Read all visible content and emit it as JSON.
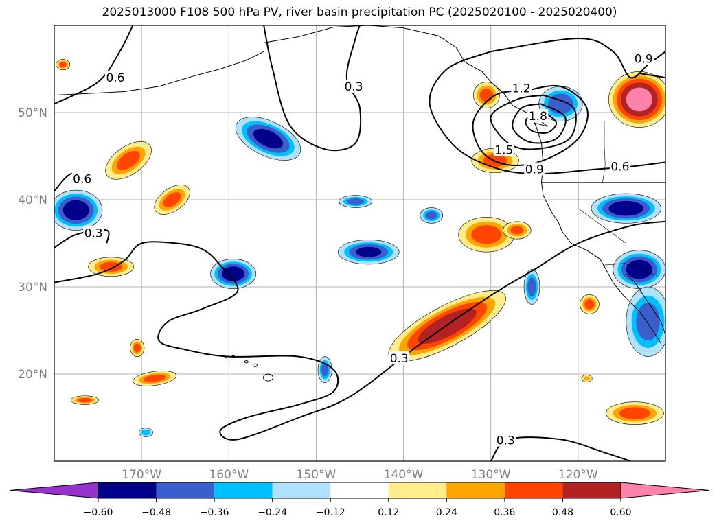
{
  "title": "2025013000 F108 500 hPa PV, river basin precipitation PC (2025020100 - 2025020400)",
  "map": {
    "projection": "equirectangular",
    "lon_range": [
      -180,
      -110
    ],
    "lat_range": [
      10,
      60
    ],
    "gridlines": true,
    "lat_ticks": [
      {
        "value": 50,
        "label": "50°N"
      },
      {
        "value": 40,
        "label": "40°N"
      },
      {
        "value": 30,
        "label": "30°N"
      },
      {
        "value": 20,
        "label": "20°N"
      }
    ],
    "lon_ticks": [
      {
        "value": -170,
        "label": "170°W"
      },
      {
        "value": -160,
        "label": "160°W"
      },
      {
        "value": -150,
        "label": "150°W"
      },
      {
        "value": -140,
        "label": "140°W"
      },
      {
        "value": -130,
        "label": "130°W"
      },
      {
        "value": -120,
        "label": "120°W"
      }
    ],
    "pv_contour_labels": [
      {
        "text": "0.6",
        "lon": -173,
        "lat": 54.0
      },
      {
        "text": "0.6",
        "lon": -176.8,
        "lat": 42.4
      },
      {
        "text": "0.3",
        "lon": -175.5,
        "lat": 36.2
      },
      {
        "text": "0.3",
        "lon": -145.7,
        "lat": 53.0
      },
      {
        "text": "0.3",
        "lon": -140.5,
        "lat": 21.8
      },
      {
        "text": "0.3",
        "lon": -128.3,
        "lat": 12.4
      },
      {
        "text": "1.2",
        "lon": -126.5,
        "lat": 52.8
      },
      {
        "text": "1.8",
        "lon": -124.6,
        "lat": 49.6
      },
      {
        "text": "1.5",
        "lon": -128.5,
        "lat": 45.7
      },
      {
        "text": "0.9",
        "lon": -125.0,
        "lat": 43.5
      },
      {
        "text": "0.6",
        "lon": -115.2,
        "lat": 43.8
      },
      {
        "text": "0.9",
        "lon": -112.5,
        "lat": 56.2
      }
    ]
  },
  "colorbar": {
    "ticks": [
      "−0.60",
      "−0.48",
      "−0.36",
      "−0.24",
      "−0.12",
      "0.12",
      "0.24",
      "0.36",
      "0.48",
      "0.60"
    ],
    "colors": [
      "#9932cc",
      "#00008b",
      "#3a5fcd",
      "#00bfff",
      "#b0e2ff",
      "#ffffff",
      "#ffec8b",
      "#ffa500",
      "#ff4500",
      "#b22222",
      "#ff82ab"
    ]
  },
  "chart_data": {
    "type": "heatmap",
    "title": "2025013000 F108 500 hPa PV, river basin precipitation PC (2025020100 - 2025020400)",
    "xlabel": "",
    "ylabel": "",
    "xlim": [
      -180,
      -110
    ],
    "ylim": [
      10,
      60
    ],
    "color_levels": [
      -0.6,
      -0.48,
      -0.36,
      -0.24,
      -0.12,
      0.12,
      0.24,
      0.36,
      0.48,
      0.6
    ],
    "precip_pc_regions": [
      {
        "name": "",
        "lon": -179,
        "lat": 55.5,
        "rx": 0.8,
        "ry": 0.6,
        "peak": 0.4
      },
      {
        "name": "",
        "lon": -171.5,
        "lat": 44.5,
        "rx": 3.0,
        "ry": 1.6,
        "rot": -35,
        "peak": 0.4
      },
      {
        "name": "",
        "lon": -166.5,
        "lat": 40.0,
        "rx": 2.3,
        "ry": 1.3,
        "rot": -35,
        "peak": 0.4
      },
      {
        "name": "",
        "lon": -177.5,
        "lat": 38.8,
        "rx": 3.0,
        "ry": 2.3,
        "peak": -0.55
      },
      {
        "name": "",
        "lon": -173.5,
        "lat": 32.3,
        "rx": 2.6,
        "ry": 1.1,
        "peak": 0.4
      },
      {
        "name": "",
        "lon": -155.5,
        "lat": 47.0,
        "rx": 4.0,
        "ry": 2.0,
        "rot": 25,
        "peak": -0.52
      },
      {
        "name": "",
        "lon": -159.5,
        "lat": 31.5,
        "rx": 2.6,
        "ry": 1.7,
        "peak": -0.55
      },
      {
        "name": "",
        "lon": -145.5,
        "lat": 39.8,
        "rx": 1.9,
        "ry": 0.7,
        "peak": -0.4
      },
      {
        "name": "",
        "lon": -144.0,
        "lat": 34.0,
        "rx": 3.5,
        "ry": 1.4,
        "peak": -0.5
      },
      {
        "name": "",
        "lon": -136.8,
        "lat": 38.2,
        "rx": 1.3,
        "ry": 0.9,
        "peak": -0.4
      },
      {
        "name": "",
        "lon": -130.5,
        "lat": 36.0,
        "rx": 3.2,
        "ry": 2.0,
        "peak": 0.42
      },
      {
        "name": "",
        "lon": -127.0,
        "lat": 36.5,
        "rx": 1.6,
        "ry": 1.0,
        "peak": 0.38
      },
      {
        "name": "",
        "lon": -135.0,
        "lat": 25.5,
        "rx": 7.5,
        "ry": 2.3,
        "rot": -28,
        "peak": 0.55
      },
      {
        "name": "",
        "lon": -125.3,
        "lat": 30.0,
        "rx": 0.9,
        "ry": 2.0,
        "peak": -0.42
      },
      {
        "name": "",
        "lon": -118.7,
        "lat": 28.0,
        "rx": 1.1,
        "ry": 1.1,
        "peak": 0.4
      },
      {
        "name": "",
        "lon": -130.5,
        "lat": 52.0,
        "rx": 1.5,
        "ry": 1.5,
        "peak": 0.4
      },
      {
        "name": "",
        "lon": -129.5,
        "lat": 44.5,
        "rx": 2.7,
        "ry": 1.4,
        "peak": 0.4
      },
      {
        "name": "",
        "lon": -122.0,
        "lat": 51.0,
        "rx": 2.5,
        "ry": 2.0,
        "peak": -0.45
      },
      {
        "name": "",
        "lon": -113.0,
        "lat": 51.5,
        "rx": 3.5,
        "ry": 3.2,
        "peak": 0.65
      },
      {
        "name": "",
        "lon": -114.5,
        "lat": 39.0,
        "rx": 4.0,
        "ry": 1.7,
        "peak": -0.55
      },
      {
        "name": "",
        "lon": -113.0,
        "lat": 32.0,
        "rx": 3.0,
        "ry": 2.2,
        "peak": -0.55
      },
      {
        "name": "",
        "lon": -112.0,
        "lat": 26.0,
        "rx": 2.5,
        "ry": 4.0,
        "peak": -0.42
      },
      {
        "name": "",
        "lon": -113.5,
        "lat": 15.5,
        "rx": 3.3,
        "ry": 1.3,
        "peak": 0.42
      },
      {
        "name": "",
        "lon": -168.5,
        "lat": 19.5,
        "rx": 2.5,
        "ry": 0.8,
        "rot": -8,
        "peak": 0.4
      },
      {
        "name": "",
        "lon": -170.5,
        "lat": 23.0,
        "rx": 0.8,
        "ry": 1.0,
        "peak": 0.4
      },
      {
        "name": "",
        "lon": -176.5,
        "lat": 17.0,
        "rx": 1.6,
        "ry": 0.5,
        "peak": 0.4
      },
      {
        "name": "",
        "lon": -169.5,
        "lat": 13.3,
        "rx": 0.8,
        "ry": 0.5,
        "peak": -0.35
      },
      {
        "name": "",
        "lon": -149.0,
        "lat": 20.5,
        "rx": 0.8,
        "ry": 1.5,
        "peak": -0.4
      },
      {
        "name": "",
        "lon": -119.0,
        "lat": 19.5,
        "rx": 0.6,
        "ry": 0.4,
        "peak": 0.3
      }
    ],
    "pv_contours": [
      {
        "level": 0.3,
        "points": [
          [
            -180,
            30.5
          ],
          [
            -175,
            31.5
          ],
          [
            -172,
            33.0
          ],
          [
            -170,
            35.0
          ],
          [
            -166,
            35.0
          ],
          [
            -163,
            34.3
          ],
          [
            -161,
            32.5
          ],
          [
            -159,
            29.5
          ],
          [
            -163,
            27.5
          ],
          [
            -167,
            26.0
          ],
          [
            -168,
            23.8
          ],
          [
            -165,
            22.8
          ],
          [
            -160,
            22.0
          ],
          [
            -152,
            22.0
          ],
          [
            -148,
            20.5
          ],
          [
            -148,
            18.0
          ],
          [
            -152,
            16.5
          ],
          [
            -158,
            15.0
          ],
          [
            -161,
            13.5
          ],
          [
            -159,
            12.5
          ],
          [
            -152,
            15.0
          ],
          [
            -146,
            17.5
          ],
          [
            -138,
            23.5
          ],
          [
            -130,
            29.0
          ],
          [
            -125,
            32.0
          ],
          [
            -120,
            35.0
          ],
          [
            -114,
            37.0
          ],
          [
            -110,
            37.5
          ]
        ]
      },
      {
        "level": 0.3,
        "points": [
          [
            -180,
            34.5
          ],
          [
            -177.5,
            36.0
          ],
          [
            -174,
            36.5
          ],
          [
            -174,
            35.0
          ]
        ]
      },
      {
        "level": 0.3,
        "points": [
          [
            -130,
            10.0
          ],
          [
            -128,
            12.5
          ],
          [
            -122,
            12.5
          ],
          [
            -117,
            11.0
          ],
          [
            -114,
            10.0
          ]
        ]
      },
      {
        "level": 0.3,
        "points": [
          [
            -156,
            60.0
          ],
          [
            -155,
            55.0
          ],
          [
            -153,
            48.5
          ],
          [
            -149,
            45.8
          ],
          [
            -145.5,
            46.5
          ],
          [
            -145.0,
            50.5
          ],
          [
            -146.5,
            54.0
          ],
          [
            -145.5,
            58.5
          ],
          [
            -145,
            60.0
          ]
        ]
      },
      {
        "level": 0.6,
        "points": [
          [
            -180,
            51.0
          ],
          [
            -175,
            53.5
          ],
          [
            -172.5,
            57.0
          ],
          [
            -171,
            60.0
          ]
        ]
      },
      {
        "level": 0.6,
        "points": [
          [
            -180,
            41.0
          ],
          [
            -178,
            43.0
          ],
          [
            -176,
            42.0
          ]
        ]
      },
      {
        "level": 0.6,
        "points": [
          [
            -130,
            57.0
          ],
          [
            -120,
            58.5
          ],
          [
            -116,
            57.0
          ],
          [
            -114,
            54.0
          ],
          [
            -112,
            55.5
          ],
          [
            -110,
            57.0
          ]
        ]
      },
      {
        "level": 0.6,
        "points": [
          [
            -130,
            57.0
          ],
          [
            -135,
            55.0
          ],
          [
            -137,
            51.0
          ],
          [
            -134,
            46.0
          ],
          [
            -129,
            43.5
          ],
          [
            -124,
            43.0
          ],
          [
            -118,
            43.5
          ],
          [
            -114,
            43.8
          ],
          [
            -110,
            44.3
          ]
        ]
      },
      {
        "level": 0.9,
        "points": [
          [
            -126,
            52.5
          ],
          [
            -122,
            53.0
          ],
          [
            -119,
            50.5
          ],
          [
            -120,
            47.0
          ],
          [
            -124,
            44.5
          ],
          [
            -128,
            44.0
          ],
          [
            -131,
            45.5
          ],
          [
            -132,
            49.0
          ],
          [
            -129.5,
            52.0
          ],
          [
            -126,
            52.5
          ]
        ]
      },
      {
        "level": 0.9,
        "points": [
          [
            -113,
            54.5
          ],
          [
            -110,
            54.0
          ]
        ]
      },
      {
        "level": 1.2,
        "points": [
          [
            -124,
            52.0
          ],
          [
            -120.5,
            50.5
          ],
          [
            -121,
            47.0
          ],
          [
            -125,
            45.8
          ],
          [
            -128,
            46.5
          ],
          [
            -130,
            49.5
          ],
          [
            -127,
            51.5
          ],
          [
            -124,
            52.0
          ]
        ]
      },
      {
        "level": 1.5,
        "points": [
          [
            -124.3,
            51.0
          ],
          [
            -121.5,
            49.5
          ],
          [
            -122.5,
            47.0
          ],
          [
            -125.5,
            46.6
          ],
          [
            -127.5,
            48.3
          ],
          [
            -126.5,
            50.5
          ],
          [
            -124.3,
            51.0
          ]
        ]
      },
      {
        "level": 1.8,
        "points": [
          [
            -123.7,
            50.0
          ],
          [
            -122.5,
            48.8
          ],
          [
            -123.5,
            47.7
          ],
          [
            -125.3,
            47.9
          ],
          [
            -126.0,
            49.0
          ],
          [
            -125.0,
            50.0
          ],
          [
            -123.7,
            50.0
          ]
        ]
      }
    ]
  }
}
